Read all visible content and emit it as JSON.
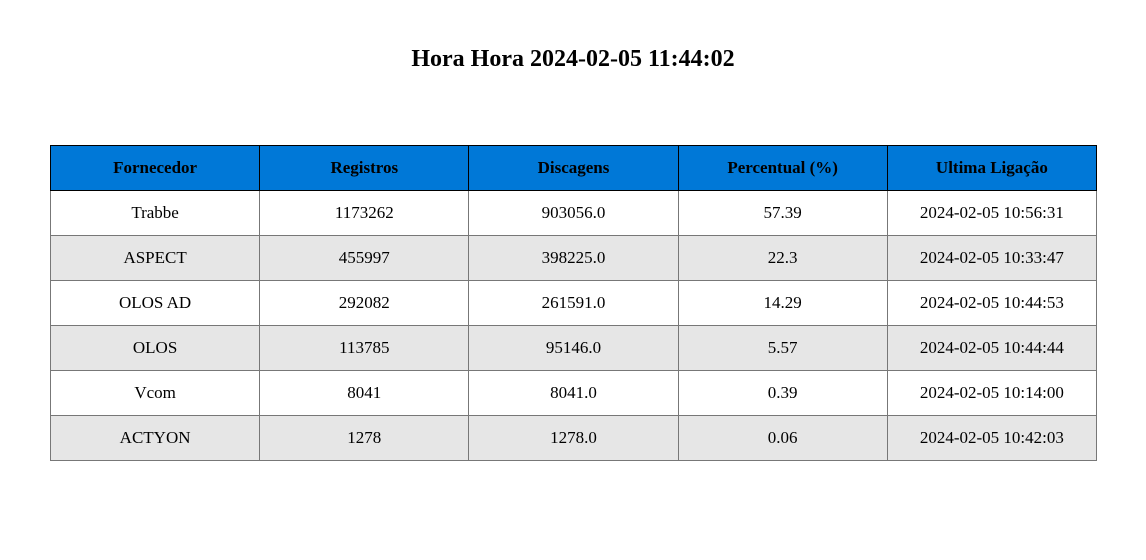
{
  "header_color": "#0078d7",
  "alt_row_color": "#e6e6e6",
  "chart_data": {
    "type": "table",
    "title": "Hora Hora 2024-02-05 11:44:02",
    "columns": [
      "Fornecedor",
      "Registros",
      "Discagens",
      "Percentual (%)",
      "Ultima Ligação"
    ],
    "rows": [
      [
        "Trabbe",
        "1173262",
        "903056.0",
        "57.39",
        "2024-02-05 10:56:31"
      ],
      [
        "ASPECT",
        "455997",
        "398225.0",
        "22.3",
        "2024-02-05 10:33:47"
      ],
      [
        "OLOS AD",
        "292082",
        "261591.0",
        "14.29",
        "2024-02-05 10:44:53"
      ],
      [
        "OLOS",
        "113785",
        "95146.0",
        "5.57",
        "2024-02-05 10:44:44"
      ],
      [
        "Vcom",
        "8041",
        "8041.0",
        "0.39",
        "2024-02-05 10:14:00"
      ],
      [
        "ACTYON",
        "1278",
        "1278.0",
        "0.06",
        "2024-02-05 10:42:03"
      ]
    ]
  }
}
